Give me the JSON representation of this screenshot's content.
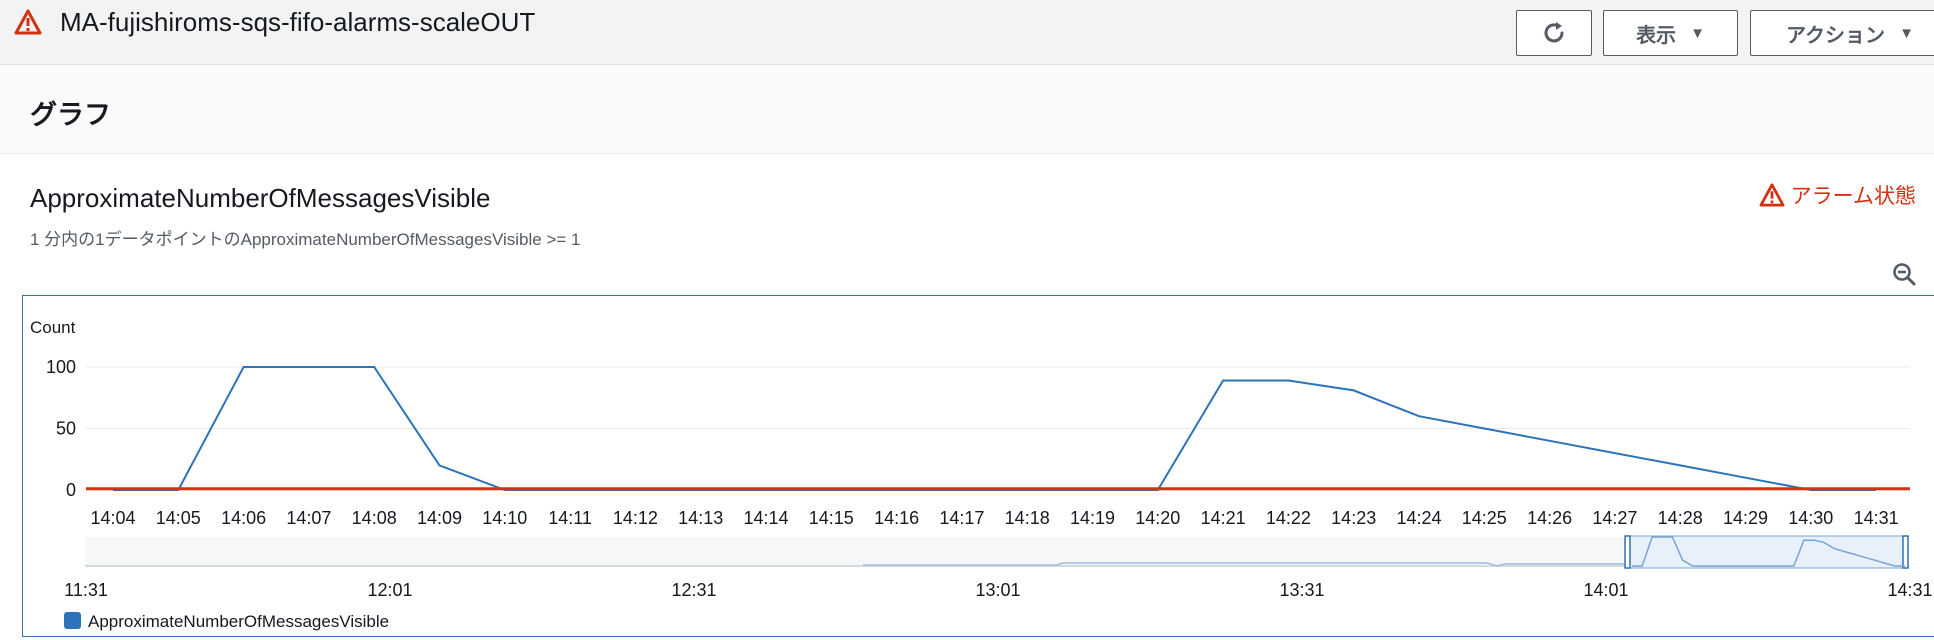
{
  "header": {
    "alarm_name": "MA-fujishiroms-sqs-fifo-alarms-scaleOUT",
    "view_button": "表示",
    "actions_button": "アクション"
  },
  "section": {
    "title": "グラフ"
  },
  "widget": {
    "metric_title": "ApproximateNumberOfMessagesVisible",
    "condition": "1 分内の1データポイントのApproximateNumberOfMessagesVisible >= 1",
    "alarm_state": "アラーム状態"
  },
  "colors": {
    "series": "#2e73b8",
    "threshold": "#d13212",
    "alarm": "#d13212"
  },
  "chart_data": {
    "type": "line",
    "ylabel": "Count",
    "ylim": [
      0,
      100
    ],
    "yticks": [
      0,
      50,
      100
    ],
    "x_ticks": [
      "14:04",
      "14:05",
      "14:06",
      "14:07",
      "14:08",
      "14:09",
      "14:10",
      "14:11",
      "14:12",
      "14:13",
      "14:14",
      "14:15",
      "14:16",
      "14:17",
      "14:18",
      "14:19",
      "14:20",
      "14:21",
      "14:22",
      "14:23",
      "14:24",
      "14:25",
      "14:26",
      "14:27",
      "14:28",
      "14:29",
      "14:30",
      "14:31"
    ],
    "series": [
      {
        "name": "ApproximateNumberOfMessagesVisible",
        "x": [
          "14:04",
          "14:05",
          "14:06",
          "14:07",
          "14:08",
          "14:09",
          "14:10",
          "14:11",
          "14:12",
          "14:13",
          "14:14",
          "14:15",
          "14:16",
          "14:17",
          "14:18",
          "14:19",
          "14:20",
          "14:21",
          "14:22",
          "14:23",
          "14:24",
          "14:25",
          "14:26",
          "14:27",
          "14:28",
          "14:29",
          "14:30",
          "14:31"
        ],
        "values": [
          0,
          0,
          100,
          100,
          100,
          20,
          0,
          0,
          0,
          0,
          0,
          0,
          0,
          0,
          0,
          0,
          0,
          89,
          89,
          81,
          60,
          50,
          40,
          30,
          20,
          10,
          0,
          0
        ]
      }
    ],
    "threshold": 1,
    "overview": {
      "x_ticks": [
        "11:31",
        "12:01",
        "12:31",
        "13:01",
        "13:31",
        "14:01",
        "14:31"
      ]
    }
  }
}
